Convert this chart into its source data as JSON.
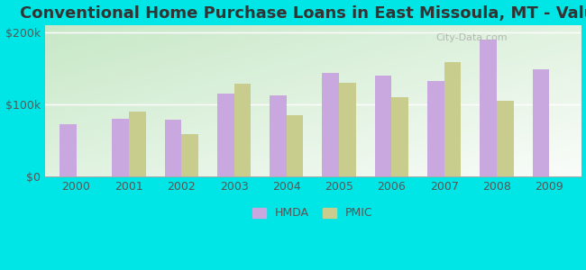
{
  "title": "Conventional Home Purchase Loans in East Missoula, MT - Value",
  "years": [
    2000,
    2001,
    2002,
    2003,
    2004,
    2005,
    2006,
    2007,
    2008,
    2009
  ],
  "hmda": [
    72000,
    80000,
    78000,
    115000,
    112000,
    143000,
    140000,
    132000,
    190000,
    148000
  ],
  "pmic": [
    null,
    90000,
    58000,
    128000,
    85000,
    130000,
    110000,
    158000,
    105000,
    null
  ],
  "hmda_color": "#c9a8e0",
  "pmic_color": "#c8cd8e",
  "background_outer": "#00e5e5",
  "ylabel_ticks": [
    "$0",
    "$100k",
    "$200k"
  ],
  "ytick_vals": [
    0,
    100000,
    200000
  ],
  "ylim": [
    0,
    210000
  ],
  "bar_width": 0.32,
  "title_fontsize": 13,
  "tick_fontsize": 9,
  "legend_labels": [
    "HMDA",
    "PMIC"
  ],
  "watermark": "City-Data.com"
}
